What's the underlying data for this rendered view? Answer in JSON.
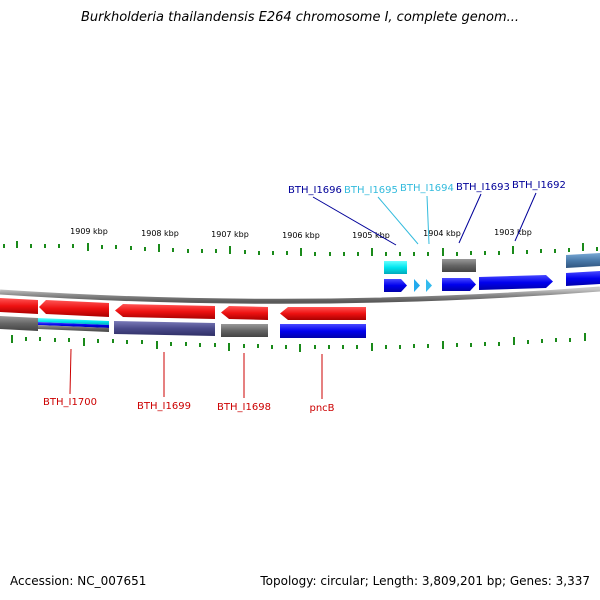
{
  "title": "Burkholderia thailandensis E264 chromosome I, complete genom...",
  "footer": {
    "accession": "Accession: NC_007651",
    "summary": "Topology: circular; Length: 3,809,201 bp; Genes: 3,337"
  },
  "scale_labels": [
    "1909 kbp",
    "1908 kbp",
    "1907 kbp",
    "1906 kbp",
    "1905 kbp",
    "1904 kbp",
    "1903 kbp"
  ],
  "genes_top": [
    {
      "label": "BTH_I1696",
      "color": "#000099"
    },
    {
      "label": "BTH_I1695",
      "color": "#33bbdd"
    },
    {
      "label": "BTH_I1694",
      "color": "#33bbdd"
    },
    {
      "label": "BTH_I1693",
      "color": "#000099"
    },
    {
      "label": "BTH_I1692",
      "color": "#000099"
    }
  ],
  "genes_bottom": [
    {
      "label": "BTH_I1700",
      "color": "#cc0000"
    },
    {
      "label": "BTH_I1699",
      "color": "#cc0000"
    },
    {
      "label": "BTH_I1698",
      "color": "#cc0000"
    },
    {
      "label": "pncB",
      "color": "#cc0000"
    }
  ],
  "colors": {
    "forward_cds": "#0000ee",
    "reverse_cds": "#ee1111",
    "cog_gray": "#666666",
    "cog_cyan": "#00e5ee",
    "cog_purple": "#4a4a8a",
    "cog_steel": "#4a7aaa",
    "tick": "#1a8a1a",
    "backbone": "#8a8a8a"
  }
}
